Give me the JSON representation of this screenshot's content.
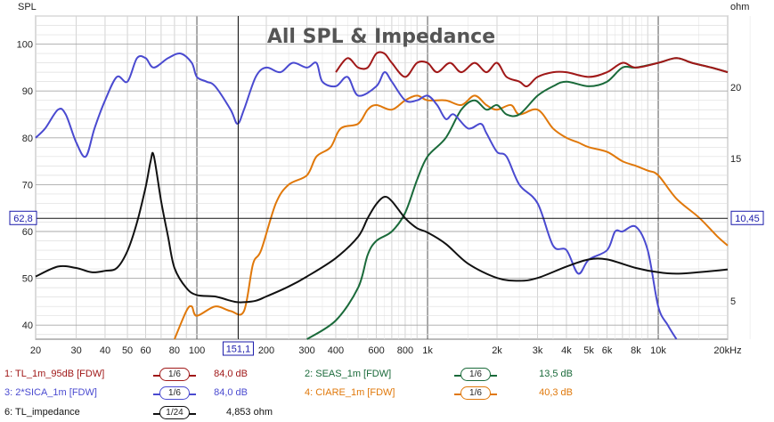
{
  "chart_data": {
    "type": "line",
    "title": "All SPL & Impedance",
    "ylabel_left": "SPL",
    "ylabel_right": "ohm",
    "xlabel": "Hz",
    "x_scale": "log",
    "xlim": [
      20,
      20000
    ],
    "ylim_left": [
      37,
      106
    ],
    "ylim_right": [
      2.3,
      25
    ],
    "x_ticks": [
      {
        "v": 20,
        "label": "20"
      },
      {
        "v": 30,
        "label": "30"
      },
      {
        "v": 40,
        "label": "40"
      },
      {
        "v": 50,
        "label": "50"
      },
      {
        "v": 60,
        "label": "60"
      },
      {
        "v": 80,
        "label": "80"
      },
      {
        "v": 100,
        "label": "100"
      },
      {
        "v": 200,
        "label": "200"
      },
      {
        "v": 300,
        "label": "300"
      },
      {
        "v": 400,
        "label": "400"
      },
      {
        "v": 600,
        "label": "600"
      },
      {
        "v": 800,
        "label": "800"
      },
      {
        "v": 1000,
        "label": "1k"
      },
      {
        "v": 2000,
        "label": "2k"
      },
      {
        "v": 3000,
        "label": "3k"
      },
      {
        "v": 4000,
        "label": "4k"
      },
      {
        "v": 5000,
        "label": "5k"
      },
      {
        "v": 6000,
        "label": "6k"
      },
      {
        "v": 8000,
        "label": "8k"
      },
      {
        "v": 10000,
        "label": "10k"
      },
      {
        "v": 20000,
        "label": "20kHz"
      }
    ],
    "y_ticks_left": [
      40,
      50,
      60,
      70,
      80,
      90,
      100
    ],
    "y_ticks_right": [
      5,
      15,
      20
    ],
    "cursor": {
      "x": 151.1,
      "x_label": "151,1",
      "y_left": 62.8,
      "y_left_label": "62,8",
      "y_right_label": "10,45"
    },
    "series": [
      {
        "name": "TL_1m_95dB [FDW]",
        "axis": "left",
        "color": "#a01818",
        "points": [
          [
            400,
            94
          ],
          [
            450,
            97
          ],
          [
            500,
            95
          ],
          [
            550,
            95
          ],
          [
            600,
            98
          ],
          [
            650,
            98
          ],
          [
            700,
            96
          ],
          [
            800,
            93
          ],
          [
            900,
            96
          ],
          [
            1000,
            96
          ],
          [
            1100,
            94
          ],
          [
            1250,
            96
          ],
          [
            1400,
            94
          ],
          [
            1600,
            96
          ],
          [
            1800,
            94
          ],
          [
            2000,
            96
          ],
          [
            2200,
            93
          ],
          [
            2500,
            92
          ],
          [
            2700,
            91
          ],
          [
            3000,
            93
          ],
          [
            3500,
            94
          ],
          [
            4000,
            94
          ],
          [
            5000,
            93
          ],
          [
            6000,
            94
          ],
          [
            7000,
            96
          ],
          [
            8000,
            95
          ],
          [
            10000,
            96
          ],
          [
            12000,
            97
          ],
          [
            14000,
            96
          ],
          [
            17000,
            95
          ],
          [
            20000,
            94
          ]
        ]
      },
      {
        "name": "SEAS_1m [FDW]",
        "axis": "left",
        "color": "#1a6a3a",
        "points": [
          [
            300,
            35
          ],
          [
            400,
            41
          ],
          [
            500,
            48
          ],
          [
            550,
            55
          ],
          [
            600,
            58
          ],
          [
            700,
            60
          ],
          [
            800,
            64
          ],
          [
            900,
            71
          ],
          [
            1000,
            76
          ],
          [
            1200,
            80
          ],
          [
            1400,
            86
          ],
          [
            1600,
            88
          ],
          [
            1800,
            86
          ],
          [
            2000,
            87
          ],
          [
            2200,
            85
          ],
          [
            2500,
            85
          ],
          [
            3000,
            89
          ],
          [
            3500,
            91
          ],
          [
            4000,
            92
          ],
          [
            5000,
            91
          ],
          [
            6000,
            92
          ],
          [
            7000,
            95
          ],
          [
            8000,
            95
          ],
          [
            10000,
            96
          ],
          [
            12000,
            97
          ],
          [
            14000,
            96
          ],
          [
            17000,
            95
          ],
          [
            20000,
            94
          ]
        ]
      },
      {
        "name": "2*SICA_1m [FDW]",
        "axis": "left",
        "color": "#4a4ad0",
        "points": [
          [
            20,
            80
          ],
          [
            22,
            82
          ],
          [
            25,
            86
          ],
          [
            27,
            85
          ],
          [
            30,
            79
          ],
          [
            33,
            76
          ],
          [
            36,
            82
          ],
          [
            40,
            88
          ],
          [
            45,
            93
          ],
          [
            50,
            92
          ],
          [
            55,
            97
          ],
          [
            60,
            97
          ],
          [
            65,
            95
          ],
          [
            75,
            97
          ],
          [
            85,
            98
          ],
          [
            95,
            96
          ],
          [
            100,
            93
          ],
          [
            110,
            92
          ],
          [
            120,
            91
          ],
          [
            140,
            86
          ],
          [
            150,
            83
          ],
          [
            160,
            86
          ],
          [
            180,
            93
          ],
          [
            200,
            95
          ],
          [
            230,
            94
          ],
          [
            260,
            96
          ],
          [
            300,
            95
          ],
          [
            330,
            96
          ],
          [
            350,
            92
          ],
          [
            400,
            91
          ],
          [
            450,
            93
          ],
          [
            500,
            89
          ],
          [
            600,
            91
          ],
          [
            650,
            94
          ],
          [
            700,
            92
          ],
          [
            800,
            88
          ],
          [
            900,
            88
          ],
          [
            1000,
            89
          ],
          [
            1100,
            87
          ],
          [
            1200,
            84
          ],
          [
            1300,
            85
          ],
          [
            1500,
            82
          ],
          [
            1700,
            83
          ],
          [
            1800,
            81
          ],
          [
            2000,
            77
          ],
          [
            2200,
            76
          ],
          [
            2500,
            70
          ],
          [
            3000,
            66
          ],
          [
            3500,
            57
          ],
          [
            4000,
            56
          ],
          [
            4500,
            51
          ],
          [
            5000,
            54
          ],
          [
            6000,
            56
          ],
          [
            6500,
            60
          ],
          [
            7000,
            60
          ],
          [
            8000,
            61
          ],
          [
            9000,
            56
          ],
          [
            10000,
            44
          ],
          [
            11000,
            40
          ],
          [
            12000,
            37
          ]
        ]
      },
      {
        "name": "CIARE_1m [FDW]",
        "axis": "left",
        "color": "#e0780a",
        "points": [
          [
            80,
            37
          ],
          [
            90,
            43
          ],
          [
            95,
            44
          ],
          [
            100,
            42
          ],
          [
            120,
            44
          ],
          [
            140,
            43
          ],
          [
            160,
            43
          ],
          [
            175,
            53
          ],
          [
            190,
            56
          ],
          [
            220,
            66
          ],
          [
            250,
            70
          ],
          [
            300,
            72
          ],
          [
            330,
            76
          ],
          [
            380,
            78
          ],
          [
            420,
            82
          ],
          [
            500,
            83
          ],
          [
            550,
            86
          ],
          [
            600,
            87
          ],
          [
            700,
            86
          ],
          [
            800,
            88
          ],
          [
            900,
            89
          ],
          [
            1000,
            88
          ],
          [
            1200,
            88
          ],
          [
            1400,
            87
          ],
          [
            1600,
            89
          ],
          [
            1800,
            87
          ],
          [
            2000,
            86
          ],
          [
            2300,
            87
          ],
          [
            2500,
            85
          ],
          [
            3000,
            86
          ],
          [
            3500,
            82
          ],
          [
            4000,
            80
          ],
          [
            4500,
            79
          ],
          [
            5000,
            78
          ],
          [
            6000,
            77
          ],
          [
            7000,
            75
          ],
          [
            8000,
            74
          ],
          [
            9000,
            73
          ],
          [
            10000,
            72
          ],
          [
            12000,
            67
          ],
          [
            15000,
            63
          ],
          [
            18000,
            59
          ],
          [
            20000,
            57
          ]
        ]
      },
      {
        "name": "TL_impedance",
        "axis": "right",
        "color": "#111111",
        "points": [
          [
            20,
            6.7
          ],
          [
            25,
            7.4
          ],
          [
            30,
            7.3
          ],
          [
            35,
            7.0
          ],
          [
            40,
            7.1
          ],
          [
            45,
            7.3
          ],
          [
            50,
            8.5
          ],
          [
            55,
            10.5
          ],
          [
            60,
            13
          ],
          [
            63,
            14.8
          ],
          [
            65,
            15.2
          ],
          [
            70,
            12
          ],
          [
            75,
            9.5
          ],
          [
            80,
            7.3
          ],
          [
            90,
            5.9
          ],
          [
            100,
            5.4
          ],
          [
            120,
            5.3
          ],
          [
            140,
            5.0
          ],
          [
            150,
            4.9
          ],
          [
            160,
            4.9
          ],
          [
            180,
            5.0
          ],
          [
            200,
            5.3
          ],
          [
            250,
            6.0
          ],
          [
            300,
            6.7
          ],
          [
            400,
            8.0
          ],
          [
            500,
            9.5
          ],
          [
            550,
            10.8
          ],
          [
            600,
            11.8
          ],
          [
            650,
            12.3
          ],
          [
            700,
            12.0
          ],
          [
            800,
            10.8
          ],
          [
            900,
            10.1
          ],
          [
            1000,
            9.8
          ],
          [
            1200,
            9.0
          ],
          [
            1500,
            7.6
          ],
          [
            2000,
            6.6
          ],
          [
            2500,
            6.4
          ],
          [
            3000,
            6.6
          ],
          [
            4000,
            7.4
          ],
          [
            5000,
            7.9
          ],
          [
            6000,
            7.9
          ],
          [
            8000,
            7.3
          ],
          [
            10000,
            7.0
          ],
          [
            12000,
            6.9
          ],
          [
            15000,
            7.0
          ],
          [
            20000,
            7.2
          ]
        ]
      }
    ]
  },
  "legend": [
    {
      "label": "1: TL_1m_95dB [FDW]",
      "smoothing": "1/6",
      "value": "84,0 dB",
      "color": "#a01818"
    },
    {
      "label": "2: SEAS_1m [FDW]",
      "smoothing": "1/6",
      "value": "13,5 dB",
      "color": "#1a6a3a"
    },
    {
      "label": "3: 2*SICA_1m [FDW]",
      "smoothing": "1/6",
      "value": "84,0 dB",
      "color": "#4a4ad0"
    },
    {
      "label": "4: CIARE_1m [FDW]",
      "smoothing": "1/6",
      "value": "40,3 dB",
      "color": "#e0780a"
    },
    {
      "label": "6: TL_impedance",
      "smoothing": "1/24",
      "value": "4,853 ohm",
      "color": "#111111"
    }
  ]
}
